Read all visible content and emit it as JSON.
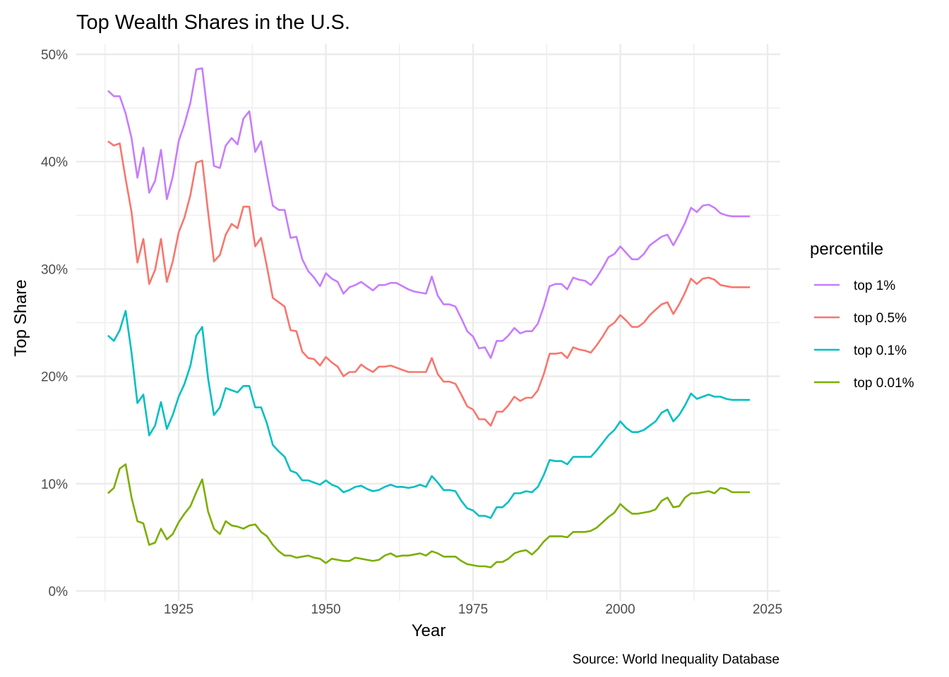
{
  "chart_data": {
    "type": "line",
    "title": "Top Wealth Shares in the U.S.",
    "xlabel": "Year",
    "ylabel": "Top Share",
    "caption": "Source: World Inequality Database",
    "xlim": [
      1907.5,
      2029.5
    ],
    "ylim": [
      -0.9,
      51.8
    ],
    "x_ticks": [
      1925,
      1950,
      1975,
      2000,
      2025
    ],
    "x_tick_labels": [
      "1925",
      "1950",
      "1975",
      "2000",
      "2025"
    ],
    "x_minor_ticks": [
      1912.5,
      1937.5,
      1962.5,
      1987.5,
      2012.5
    ],
    "y_ticks": [
      0,
      10,
      20,
      30,
      40,
      50
    ],
    "y_tick_labels": [
      "0%",
      "10%",
      "20%",
      "30%",
      "40%",
      "50%"
    ],
    "y_minor_ticks": [
      5,
      15,
      25,
      35,
      45
    ],
    "grid": true,
    "legend": {
      "title": "percentile",
      "position": "right"
    },
    "x_start": 1913,
    "series": [
      {
        "name": "top 1%",
        "color": "#C77CFF",
        "values": [
          46.6,
          46.1,
          46.1,
          44.5,
          42.2,
          38.5,
          41.3,
          37.1,
          38.2,
          41.1,
          36.5,
          38.6,
          41.9,
          43.5,
          45.5,
          48.6,
          48.7,
          44.1,
          39.6,
          39.4,
          41.5,
          42.2,
          41.6,
          44.0,
          44.7,
          40.9,
          41.9,
          38.8,
          35.9,
          35.5,
          35.5,
          32.9,
          33.0,
          30.9,
          29.8,
          29.2,
          28.4,
          29.6,
          29.1,
          28.8,
          27.7,
          28.3,
          28.5,
          28.8,
          28.4,
          28.0,
          28.5,
          28.5,
          28.7,
          28.7,
          28.4,
          28.1,
          27.9,
          27.8,
          27.7,
          29.3,
          27.5,
          26.7,
          26.7,
          26.5,
          25.4,
          24.2,
          23.7,
          22.6,
          22.7,
          21.7,
          23.3,
          23.3,
          23.8,
          24.5,
          24.0,
          24.2,
          24.2,
          24.9,
          26.5,
          28.4,
          28.6,
          28.6,
          28.1,
          29.2,
          29.0,
          28.9,
          28.5,
          29.2,
          30.1,
          31.1,
          31.4,
          32.1,
          31.5,
          30.9,
          30.9,
          31.4,
          32.2,
          32.6,
          33.0,
          33.2,
          32.2,
          33.2,
          34.3,
          35.7,
          35.3,
          35.9,
          36.0,
          35.7,
          35.2,
          35.0,
          34.9,
          34.9,
          34.9,
          34.9
        ]
      },
      {
        "name": "top 0.5%",
        "color": "#F8766D",
        "values": [
          41.9,
          41.5,
          41.7,
          38.4,
          35.3,
          30.6,
          32.8,
          28.6,
          29.9,
          32.8,
          28.8,
          30.7,
          33.4,
          34.8,
          36.9,
          39.9,
          40.1,
          35.3,
          30.7,
          31.3,
          33.2,
          34.2,
          33.8,
          35.8,
          35.8,
          32.1,
          32.9,
          30.2,
          27.3,
          26.9,
          26.5,
          24.3,
          24.2,
          22.3,
          21.7,
          21.6,
          21.0,
          21.8,
          21.3,
          20.9,
          20.0,
          20.4,
          20.4,
          21.1,
          20.7,
          20.4,
          20.9,
          20.9,
          21.0,
          20.8,
          20.6,
          20.4,
          20.4,
          20.4,
          20.4,
          21.7,
          20.2,
          19.5,
          19.5,
          19.3,
          18.3,
          17.2,
          16.9,
          16.0,
          16.0,
          15.4,
          16.7,
          16.7,
          17.3,
          18.1,
          17.7,
          18.0,
          18.0,
          18.7,
          20.2,
          22.1,
          22.1,
          22.2,
          21.7,
          22.7,
          22.5,
          22.4,
          22.2,
          22.9,
          23.7,
          24.6,
          25.0,
          25.7,
          25.2,
          24.6,
          24.6,
          25.0,
          25.7,
          26.2,
          26.7,
          26.9,
          25.8,
          26.7,
          27.8,
          29.1,
          28.6,
          29.1,
          29.2,
          29.0,
          28.5,
          28.4,
          28.3,
          28.3,
          28.3,
          28.3
        ]
      },
      {
        "name": "top 0.1%",
        "color": "#00BFC4",
        "values": [
          23.8,
          23.3,
          24.3,
          26.1,
          22.2,
          17.5,
          18.3,
          14.5,
          15.4,
          17.6,
          15.1,
          16.4,
          18.1,
          19.3,
          21.0,
          23.8,
          24.6,
          19.8,
          16.4,
          17.1,
          18.9,
          18.7,
          18.5,
          19.1,
          19.1,
          17.1,
          17.1,
          15.6,
          13.6,
          13.0,
          12.5,
          11.2,
          11.0,
          10.3,
          10.3,
          10.1,
          9.9,
          10.3,
          9.9,
          9.7,
          9.2,
          9.4,
          9.7,
          9.8,
          9.5,
          9.3,
          9.4,
          9.7,
          9.9,
          9.7,
          9.7,
          9.6,
          9.7,
          9.9,
          9.7,
          10.7,
          10.1,
          9.4,
          9.4,
          9.3,
          8.4,
          7.7,
          7.5,
          7.0,
          7.0,
          6.8,
          7.8,
          7.8,
          8.3,
          9.1,
          9.1,
          9.3,
          9.2,
          9.7,
          10.8,
          12.2,
          12.1,
          12.1,
          11.8,
          12.5,
          12.5,
          12.5,
          12.5,
          13.1,
          13.8,
          14.5,
          15.0,
          15.8,
          15.2,
          14.8,
          14.8,
          15.0,
          15.4,
          15.8,
          16.6,
          16.9,
          15.8,
          16.4,
          17.3,
          18.4,
          17.9,
          18.1,
          18.3,
          18.1,
          18.1,
          17.9,
          17.8,
          17.8,
          17.8,
          17.8
        ]
      },
      {
        "name": "top 0.01%",
        "color": "#7CAE00",
        "values": [
          9.1,
          9.6,
          11.4,
          11.8,
          8.7,
          6.5,
          6.3,
          4.3,
          4.5,
          5.8,
          4.8,
          5.3,
          6.4,
          7.2,
          7.9,
          9.2,
          10.4,
          7.4,
          5.8,
          5.3,
          6.5,
          6.1,
          6.0,
          5.8,
          6.1,
          6.2,
          5.5,
          5.1,
          4.3,
          3.7,
          3.3,
          3.3,
          3.1,
          3.2,
          3.3,
          3.1,
          3.0,
          2.6,
          3.0,
          2.9,
          2.8,
          2.8,
          3.1,
          3.0,
          2.9,
          2.8,
          2.9,
          3.3,
          3.5,
          3.2,
          3.3,
          3.3,
          3.4,
          3.5,
          3.3,
          3.7,
          3.5,
          3.2,
          3.2,
          3.2,
          2.8,
          2.5,
          2.4,
          2.3,
          2.3,
          2.2,
          2.7,
          2.7,
          3.0,
          3.5,
          3.7,
          3.8,
          3.4,
          3.9,
          4.6,
          5.1,
          5.1,
          5.1,
          5.0,
          5.5,
          5.5,
          5.5,
          5.6,
          5.9,
          6.4,
          6.9,
          7.3,
          8.1,
          7.6,
          7.2,
          7.2,
          7.3,
          7.4,
          7.6,
          8.4,
          8.7,
          7.8,
          7.9,
          8.7,
          9.1,
          9.1,
          9.2,
          9.3,
          9.1,
          9.6,
          9.5,
          9.2,
          9.2,
          9.2,
          9.2
        ]
      }
    ]
  }
}
